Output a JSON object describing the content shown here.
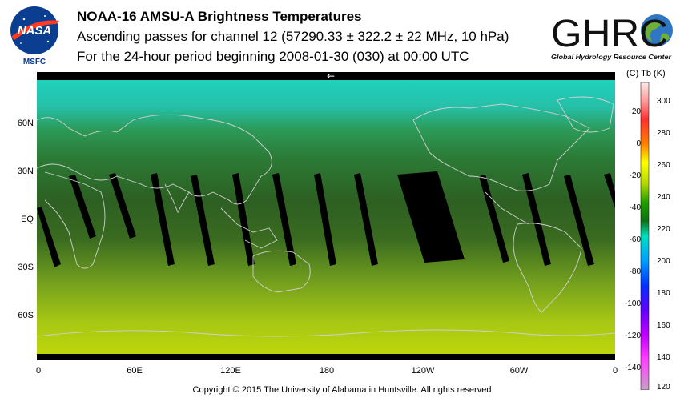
{
  "header": {
    "title": "NOAA-16 AMSU-A Brightness Temperatures",
    "subtitle": "Ascending passes for channel 12 (57290.33 ± 322.2 ± 22 MHz, 10 hPa)",
    "period": "For the 24-hour period beginning 2008-01-30 (030) at 00:00 UTC"
  },
  "logos": {
    "nasa": {
      "text": "NASA",
      "caption": "MSFC"
    },
    "ghrc": {
      "text": "GHRC",
      "caption": "Global Hydrology Resource Center"
    }
  },
  "map": {
    "latitude_labels": [
      "60N",
      "30N",
      "EQ",
      "30S",
      "60S"
    ],
    "longitude_labels": [
      "0",
      "60E",
      "120E",
      "180",
      "120W",
      "60W",
      "0"
    ],
    "direction_arrow": "←",
    "colors": {
      "polar_north": "#22d8c8",
      "mid_north": "#2e8c38",
      "tropics": "#2f5e22",
      "south_mid": "#7fa820",
      "south_pole": "#bcd60a",
      "no_data": "#000000",
      "coastline": "#c8c8c8"
    }
  },
  "colorbar": {
    "header": "(C)  Tb  (K)",
    "celsius_ticks": [
      "20",
      "0",
      "-20",
      "-40",
      "-60",
      "-80",
      "-100",
      "-120",
      "-140"
    ],
    "kelvin_ticks": [
      "300",
      "280",
      "260",
      "240",
      "220",
      "200",
      "180",
      "160",
      "140",
      "120"
    ],
    "kelvin_range": [
      120,
      310
    ]
  },
  "footer": {
    "copyright": "Copyright © 2015 The University of Alabama in Huntsville.  All rights reserved"
  }
}
